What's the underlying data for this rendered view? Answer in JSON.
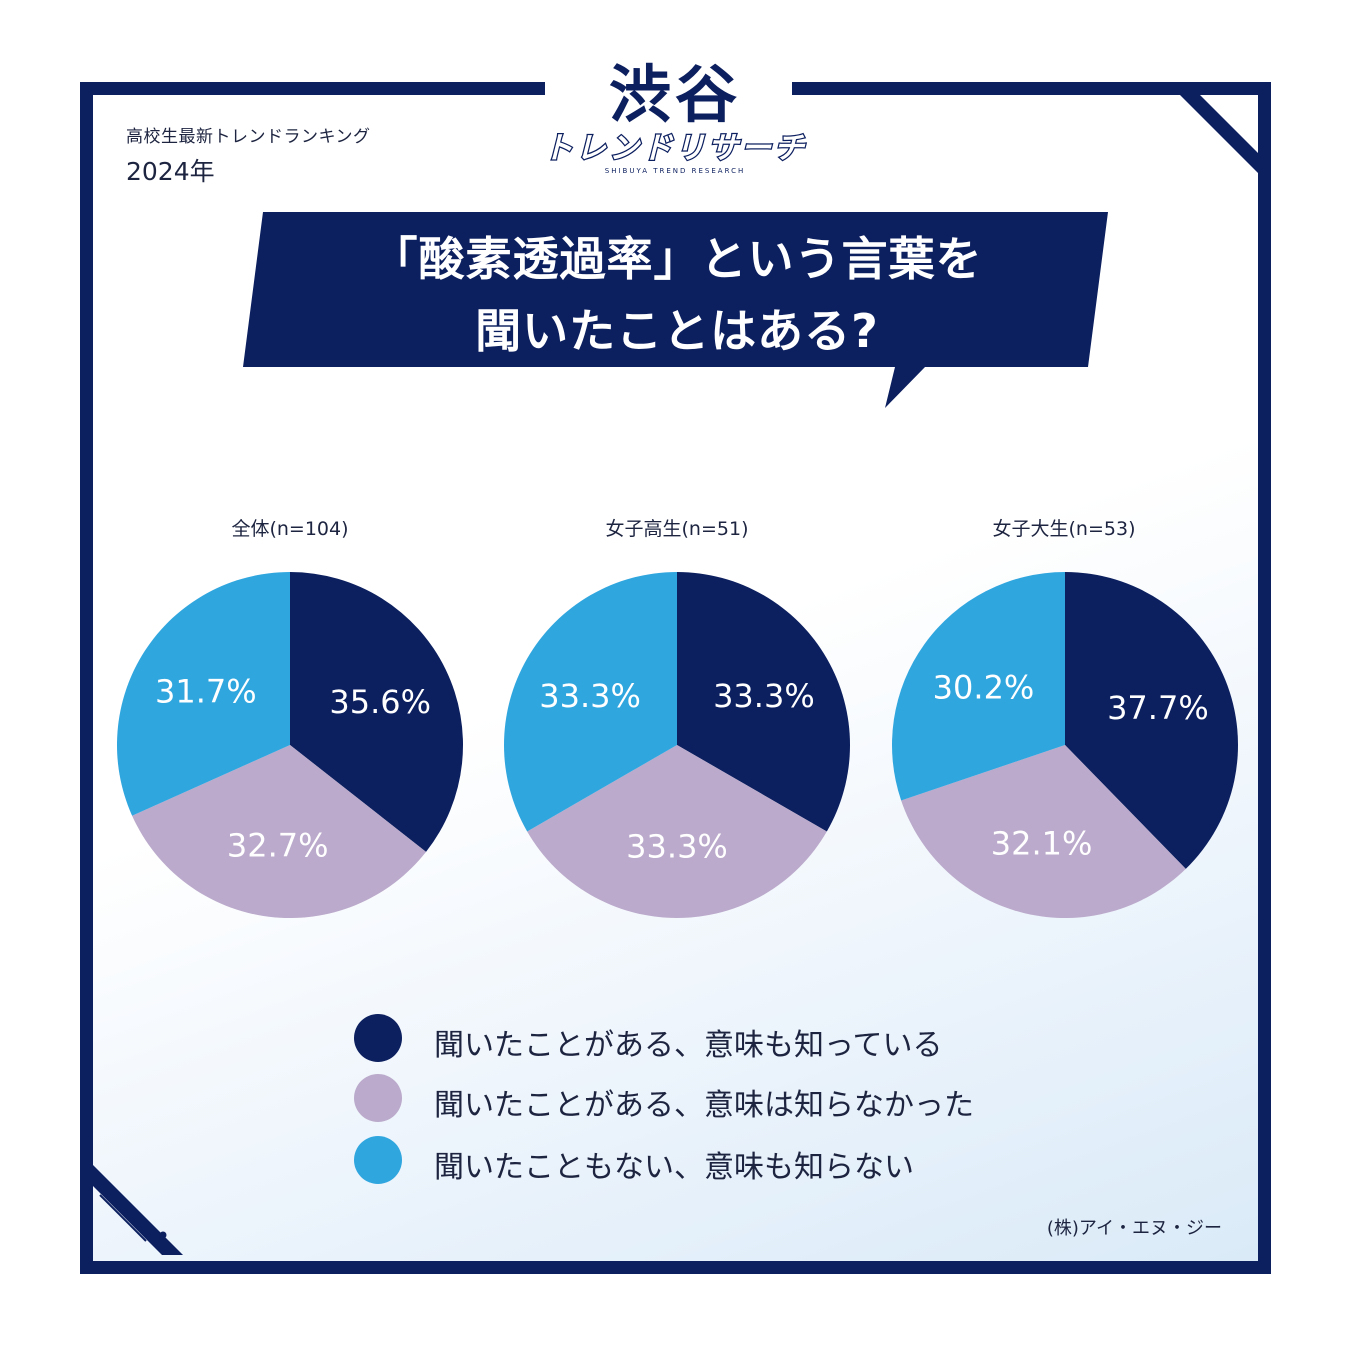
{
  "header": {
    "subtitle": "高校生最新トレンドランキング",
    "year": "2024年"
  },
  "logo": {
    "main": "渋谷",
    "sub": "トレンドリサーチ",
    "tiny": "SHIBUYA TREND RESEARCH"
  },
  "question": {
    "line1": "「酸素透過率」という言葉を",
    "line2": "聞いたことはある?"
  },
  "colors": {
    "navy": "#0c1f5f",
    "lavender": "#bbaacb",
    "sky": "#30a6df"
  },
  "chart_data": [
    {
      "type": "pie",
      "title": "全体(n=104)",
      "categories": [
        "聞いたことがある、意味も知っている",
        "聞いたことがある、意味は知らなかった",
        "聞いたこともない、意味も知らない"
      ],
      "values": [
        35.6,
        32.7,
        31.7
      ],
      "labels": [
        "35.6%",
        "32.7%",
        "31.7%"
      ]
    },
    {
      "type": "pie",
      "title": "女子高生(n=51)",
      "categories": [
        "聞いたことがある、意味も知っている",
        "聞いたことがある、意味は知らなかった",
        "聞いたこともない、意味も知らない"
      ],
      "values": [
        33.3,
        33.3,
        33.3
      ],
      "labels": [
        "33.3%",
        "33.3%",
        "33.3%"
      ]
    },
    {
      "type": "pie",
      "title": "女子大生(n=53)",
      "categories": [
        "聞いたことがある、意味も知っている",
        "聞いたことがある、意味は知らなかった",
        "聞いたこともない、意味も知らない"
      ],
      "values": [
        37.7,
        32.1,
        30.2
      ],
      "labels": [
        "37.7%",
        "32.1%",
        "30.2%"
      ]
    }
  ],
  "legend": [
    {
      "label": "聞いたことがある、意味も知っている"
    },
    {
      "label": "聞いたことがある、意味は知らなかった"
    },
    {
      "label": "聞いたこともない、意味も知らない"
    }
  ],
  "credit": "(株)アイ・エヌ・ジー"
}
